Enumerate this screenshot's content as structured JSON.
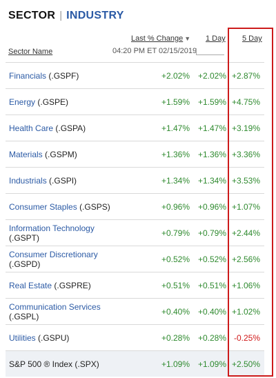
{
  "tabs": {
    "sector": "SECTOR",
    "separator": "|",
    "industry": "INDUSTRY"
  },
  "header": {
    "last_change": "Last % Change",
    "sort_icon": "triangle-down-icon",
    "one_day": "1 Day",
    "five_day": "5 Day",
    "sector_name": "Sector Name",
    "timestamp": "04:20 PM ET 02/15/2019"
  },
  "rows": [
    {
      "name": "Financials",
      "symbol": "(.GSPF)",
      "last": "+2.02%",
      "day1": "+2.02%",
      "day5": "+2.87%"
    },
    {
      "name": "Energy",
      "symbol": "(.GSPE)",
      "last": "+1.59%",
      "day1": "+1.59%",
      "day5": "+4.75%"
    },
    {
      "name": "Health Care",
      "symbol": "(.GSPA)",
      "last": "+1.47%",
      "day1": "+1.47%",
      "day5": "+3.19%"
    },
    {
      "name": "Materials",
      "symbol": "(.GSPM)",
      "last": "+1.36%",
      "day1": "+1.36%",
      "day5": "+3.36%"
    },
    {
      "name": "Industrials",
      "symbol": "(.GSPI)",
      "last": "+1.34%",
      "day1": "+1.34%",
      "day5": "+3.53%"
    },
    {
      "name": "Consumer Staples",
      "symbol": "(.GSPS)",
      "last": "+0.96%",
      "day1": "+0.96%",
      "day5": "+1.07%"
    },
    {
      "name": "Information Technology",
      "symbol": "(.GSPT)",
      "last": "+0.79%",
      "day1": "+0.79%",
      "day5": "+2.44%"
    },
    {
      "name": "Consumer Discretionary",
      "symbol": "(.GSPD)",
      "last": "+0.52%",
      "day1": "+0.52%",
      "day5": "+2.56%"
    },
    {
      "name": "Real Estate",
      "symbol": "(.GSPRE)",
      "last": "+0.51%",
      "day1": "+0.51%",
      "day5": "+1.06%"
    },
    {
      "name": "Communication Services",
      "symbol": "(.GSPL)",
      "last": "+0.40%",
      "day1": "+0.40%",
      "day5": "+1.02%"
    },
    {
      "name": "Utilities",
      "symbol": "(.GSPU)",
      "last": "+0.28%",
      "day1": "+0.28%",
      "day5": "-0.25%"
    },
    {
      "name": "S&P 500 ® Index",
      "symbol": "(.SPX)",
      "last": "+1.09%",
      "day1": "+1.09%",
      "day5": "+2.50%"
    }
  ],
  "colors": {
    "positive": "#2f8a2f",
    "negative": "#d01818",
    "link": "#2b5aa5",
    "highlight": "#cc1a1a"
  }
}
